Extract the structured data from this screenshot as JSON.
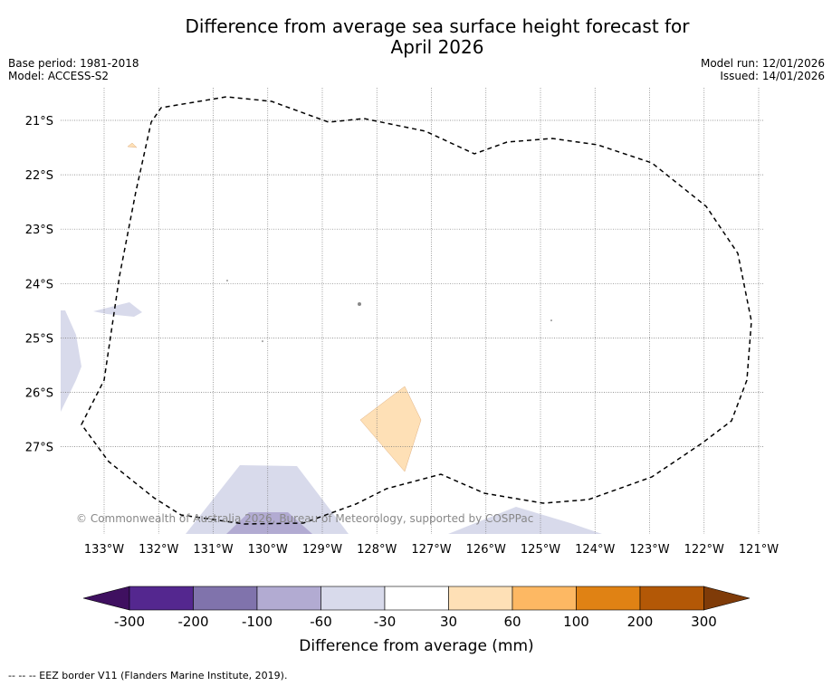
{
  "title_line1": "Difference from average sea surface height forecast for",
  "title_line2": "April 2026",
  "base_period": "Base period: 1981-2018",
  "model": "Model: ACCESS-S2",
  "model_run": "Model run: 12/01/2026",
  "issued": "Issued: 14/01/2026",
  "copyright": "© Commonwealth of Australia 2026, Bureau of Meteorology, supported by COSPPac",
  "map": {
    "lon_labels": [
      "133°W",
      "132°W",
      "131°W",
      "130°W",
      "129°W",
      "128°W",
      "127°W",
      "126°W",
      "125°W",
      "124°W",
      "123°W",
      "122°W",
      "121°W"
    ],
    "lat_labels": [
      "21°S",
      "22°S",
      "23°S",
      "24°S",
      "25°S",
      "26°S",
      "27°S"
    ]
  },
  "colorbar": {
    "tick_labels": [
      "-300",
      "-200",
      "-100",
      "-60",
      "-30",
      "30",
      "60",
      "100",
      "200",
      "300"
    ],
    "colors": [
      "#3f1060",
      "#54278f",
      "#8073ac",
      "#b2abd2",
      "#d8daeb",
      "#ffffff",
      "#fee0b6",
      "#fdb863",
      "#e08214",
      "#b35806",
      "#7f3b08"
    ],
    "label": "Difference from average (mm)"
  },
  "footer": "--  --  -- EEZ border V11 (Flanders Marine Institute, 2019)."
}
